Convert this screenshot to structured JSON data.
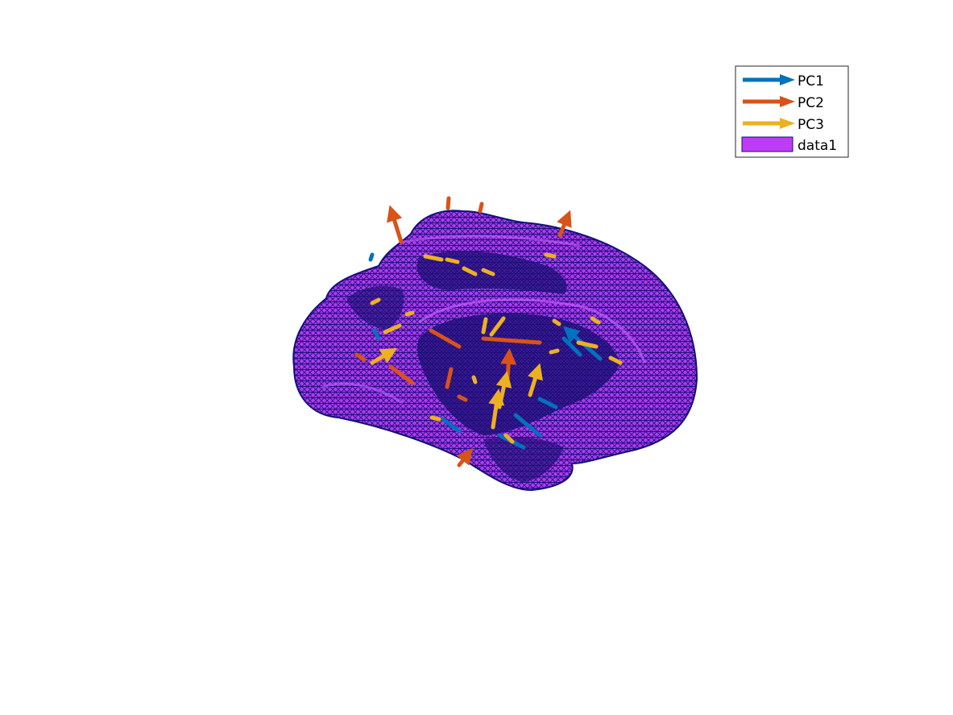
{
  "figure": {
    "kind": "3-D brain surface mesh with principal-component arrows",
    "colors": {
      "background": "#ffffff",
      "surface_fill": "#bf3cf5",
      "surface_edge": "#10107a",
      "pc1": "#0072bd",
      "pc2": "#d95319",
      "pc3": "#edb120",
      "legend_border": "#262626"
    }
  },
  "legend": {
    "entries": [
      {
        "label": "PC1",
        "type": "arrow",
        "color": "#0072bd"
      },
      {
        "label": "PC2",
        "type": "arrow",
        "color": "#d95319"
      },
      {
        "label": "PC3",
        "type": "arrow",
        "color": "#edb120"
      },
      {
        "label": "data1",
        "type": "patch",
        "color": "#bf3cf5"
      }
    ]
  }
}
